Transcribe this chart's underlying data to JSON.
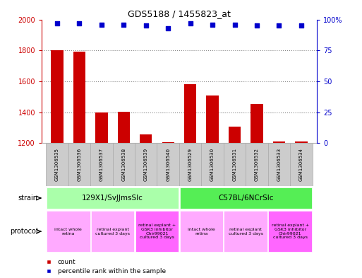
{
  "title": "GDS5188 / 1455823_at",
  "samples": [
    "GSM1306535",
    "GSM1306536",
    "GSM1306537",
    "GSM1306538",
    "GSM1306539",
    "GSM1306540",
    "GSM1306529",
    "GSM1306530",
    "GSM1306531",
    "GSM1306532",
    "GSM1306533",
    "GSM1306534"
  ],
  "counts": [
    1800,
    1790,
    1400,
    1405,
    1255,
    1205,
    1580,
    1510,
    1305,
    1455,
    1210,
    1210
  ],
  "percentiles": [
    97,
    97,
    96,
    96,
    95,
    93,
    97,
    96,
    96,
    95,
    95,
    95
  ],
  "ymin": 1200,
  "ymax": 2000,
  "yticks": [
    1200,
    1400,
    1600,
    1800,
    2000
  ],
  "y2ticks": [
    0,
    25,
    50,
    75,
    100
  ],
  "y2ticklabels": [
    "0",
    "25",
    "50",
    "75",
    "100%"
  ],
  "y2min": 0,
  "y2max": 100,
  "bar_color": "#cc0000",
  "dot_color": "#0000cc",
  "bg_color": "#ffffff",
  "strain_groups": [
    {
      "label": "129X1/SvJJmsSlc",
      "start": 0,
      "end": 5,
      "color": "#aaffaa"
    },
    {
      "label": "C57BL/6NCrSlc",
      "start": 6,
      "end": 11,
      "color": "#55ee55"
    }
  ],
  "protocol_groups": [
    {
      "label": "intact whole\nretina",
      "start": 0,
      "end": 1,
      "color": "#ffaaff"
    },
    {
      "label": "retinal explant\ncultured 3 days",
      "start": 2,
      "end": 3,
      "color": "#ffaaff"
    },
    {
      "label": "retinal explant +\nGSK3 inhibitor\nChir99021\ncultured 3 days",
      "start": 4,
      "end": 5,
      "color": "#ff66ff"
    },
    {
      "label": "intact whole\nretina",
      "start": 6,
      "end": 7,
      "color": "#ffaaff"
    },
    {
      "label": "retinal explant\ncultured 3 days",
      "start": 8,
      "end": 9,
      "color": "#ffaaff"
    },
    {
      "label": "retinal explant +\nGSK3 inhibitor\nChir99021\ncultured 3 days",
      "start": 10,
      "end": 11,
      "color": "#ff66ff"
    }
  ],
  "strain_label": "strain",
  "protocol_label": "protocol",
  "legend_count": "count",
  "legend_pct": "percentile rank within the sample",
  "tick_color_left": "#cc0000",
  "tick_color_right": "#0000cc",
  "dotted_line_color": "#888888",
  "bar_width": 0.55,
  "gsm_bg_color": "#cccccc",
  "gsm_border_color": "#aaaaaa"
}
